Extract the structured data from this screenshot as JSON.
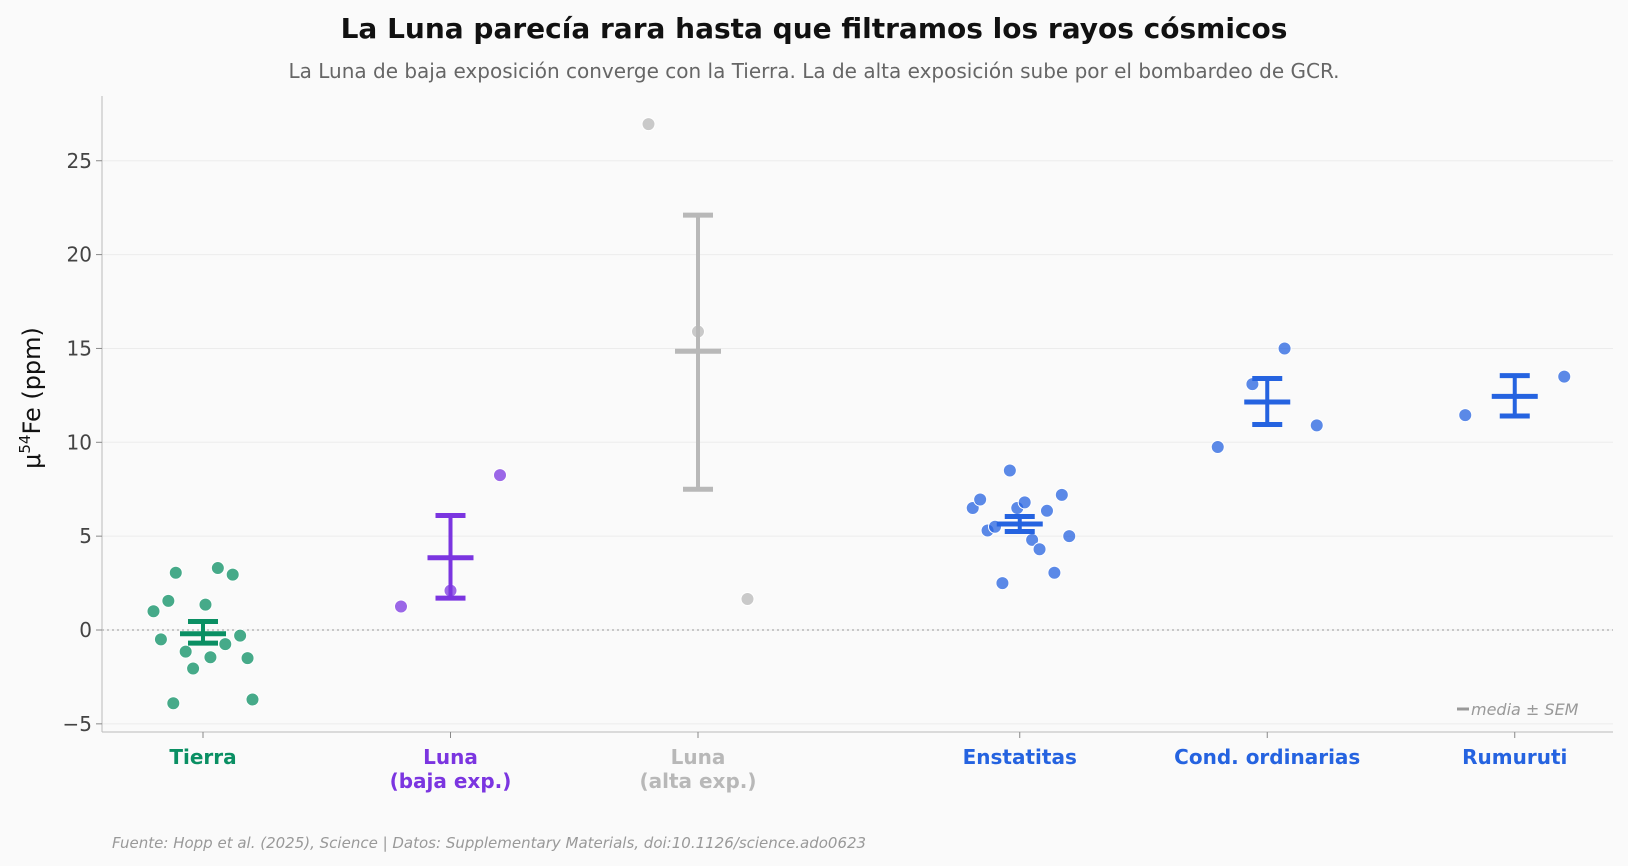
{
  "chart_data": {
    "type": "scatter",
    "title": "La Luna parecía rara hasta que filtramos los rayos cósmicos",
    "subtitle": "La Luna de baja exposición converge con la Tierra. La de alta exposición sube por el bombardeo de GCR.",
    "ylabel": "μ⁵⁴Fe (ppm)",
    "ylim": [
      -5.5,
      28.5
    ],
    "yticks": [
      -5,
      0,
      5,
      10,
      15,
      20,
      25
    ],
    "ytick_labels": [
      "−5",
      "0",
      "5",
      "10",
      "15",
      "20",
      "25"
    ],
    "grid": true,
    "zero_line": true,
    "legend": {
      "text": "media ± SEM",
      "position": "bottom-right"
    },
    "source": "Fuente: Hopp et al. (2025), Science | Datos: Supplementary Materials, doi:10.1126/science.ado0623",
    "groups": [
      {
        "label_lines": [
          "Tierra"
        ],
        "x": 0,
        "color": "#0a8f63",
        "mean": -0.2,
        "sem_low": -0.7,
        "sem_high": 0.45,
        "points": [
          [
            -0.2,
            1.0
          ],
          [
            -0.17,
            -0.5
          ],
          [
            -0.14,
            1.55
          ],
          [
            -0.11,
            3.05
          ],
          [
            -0.07,
            -1.15
          ],
          [
            -0.04,
            -2.05
          ],
          [
            0.01,
            1.35
          ],
          [
            0.03,
            -1.45
          ],
          [
            0.06,
            3.3
          ],
          [
            0.09,
            -0.75
          ],
          [
            0.12,
            2.95
          ],
          [
            0.15,
            -0.3
          ],
          [
            0.18,
            -1.5
          ],
          [
            0.2,
            -3.7
          ],
          [
            -0.12,
            -3.9
          ]
        ]
      },
      {
        "label_lines": [
          "Luna",
          "(baja exp.)"
        ],
        "x": 1,
        "color": "#7b35e0",
        "mean": 3.85,
        "sem_low": 1.7,
        "sem_high": 6.1,
        "points": [
          [
            -0.2,
            1.25
          ],
          [
            0.0,
            2.1
          ],
          [
            0.2,
            8.25
          ]
        ]
      },
      {
        "label_lines": [
          "Luna",
          "(alta exp.)"
        ],
        "x": 2,
        "color": "#b8b8b8",
        "mean": 14.85,
        "sem_low": 7.5,
        "sem_high": 22.1,
        "points": [
          [
            -0.2,
            26.95
          ],
          [
            0.0,
            15.9
          ],
          [
            0.2,
            1.65
          ]
        ]
      },
      {
        "label_lines": [
          "Enstatitas"
        ],
        "x": 3.3,
        "color": "#2563e0",
        "mean": 5.65,
        "sem_low": 5.25,
        "sem_high": 6.05,
        "points": [
          [
            -0.19,
            6.5
          ],
          [
            -0.16,
            6.95
          ],
          [
            -0.13,
            5.3
          ],
          [
            -0.1,
            5.5
          ],
          [
            -0.07,
            2.5
          ],
          [
            -0.04,
            8.5
          ],
          [
            -0.01,
            6.5
          ],
          [
            0.02,
            6.8
          ],
          [
            0.05,
            4.8
          ],
          [
            0.08,
            4.3
          ],
          [
            0.11,
            6.35
          ],
          [
            0.14,
            3.05
          ],
          [
            0.17,
            7.2
          ],
          [
            0.2,
            5.0
          ]
        ]
      },
      {
        "label_lines": [
          "Cond. ordinarias"
        ],
        "x": 4.3,
        "color": "#2563e0",
        "mean": 12.15,
        "sem_low": 10.95,
        "sem_high": 13.4,
        "points": [
          [
            -0.2,
            9.75
          ],
          [
            -0.06,
            13.1
          ],
          [
            0.07,
            15.0
          ],
          [
            0.2,
            10.9
          ]
        ]
      },
      {
        "label_lines": [
          "Rumuruti"
        ],
        "x": 5.3,
        "color": "#2563e0",
        "mean": 12.45,
        "sem_low": 11.4,
        "sem_high": 13.55,
        "points": [
          [
            -0.2,
            11.45
          ],
          [
            0.2,
            13.5
          ]
        ]
      }
    ]
  }
}
